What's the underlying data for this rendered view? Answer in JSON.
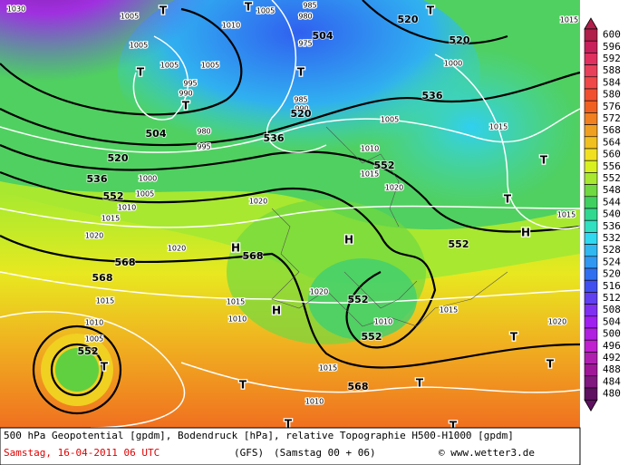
{
  "map": {
    "contour_labels": [
      "504",
      "520",
      "536",
      "552",
      "568",
      "568",
      "568",
      "552",
      "536",
      "520",
      "504",
      "520",
      "520",
      "536",
      "552",
      "552",
      "552",
      "552",
      "568"
    ],
    "pressure_labels": [
      "1030",
      "1005",
      "1005",
      "1005",
      "1005",
      "995",
      "990",
      "980",
      "995",
      "1010",
      "1005",
      "985",
      "980",
      "975",
      "985",
      "990",
      "1000",
      "1005",
      "1010",
      "1015",
      "1020",
      "1020",
      "1015",
      "1015",
      "1000",
      "1005",
      "1010",
      "1015",
      "1020",
      "1020",
      "1015",
      "1015",
      "1010",
      "1005",
      "1020",
      "1010",
      "1010",
      "1015",
      "1015",
      "1010",
      "1015",
      "1020"
    ],
    "markers": [
      "T",
      "T",
      "T",
      "T",
      "T",
      "T",
      "T",
      "T",
      "H",
      "H",
      "H",
      "H",
      "T",
      "T",
      "T",
      "T",
      "T",
      "T",
      "T"
    ]
  },
  "legend": {
    "values": [
      600,
      596,
      592,
      588,
      584,
      580,
      576,
      572,
      568,
      564,
      560,
      556,
      552,
      548,
      544,
      540,
      536,
      532,
      528,
      524,
      520,
      516,
      512,
      508,
      504,
      500,
      496,
      492,
      488,
      484,
      480
    ],
    "colors": [
      "#b0204a",
      "#c8205a",
      "#e03060",
      "#e8405a",
      "#f04848",
      "#f05030",
      "#f06020",
      "#f08020",
      "#f0a020",
      "#f0c020",
      "#f0e020",
      "#d8f020",
      "#a8e830",
      "#70d840",
      "#40d060",
      "#30d890",
      "#30e0c0",
      "#30d8f0",
      "#30b8f0",
      "#3098f0",
      "#3070f0",
      "#4050f0",
      "#6040f0",
      "#8030f0",
      "#a020f0",
      "#b020e0",
      "#c020d0",
      "#b020b0",
      "#a01898",
      "#801880",
      "#601060"
    ]
  },
  "footer": {
    "description": "500 hPa Geopotential [gpdm], Bodendruck [hPa], relative Topographie H500-H1000 [gpdm]",
    "date": "Samstag, 16-04-2011  06 UTC",
    "model": "(GFS)",
    "run": "(Samstag 00 + 06)",
    "credit": "© www.wetter3.de"
  }
}
